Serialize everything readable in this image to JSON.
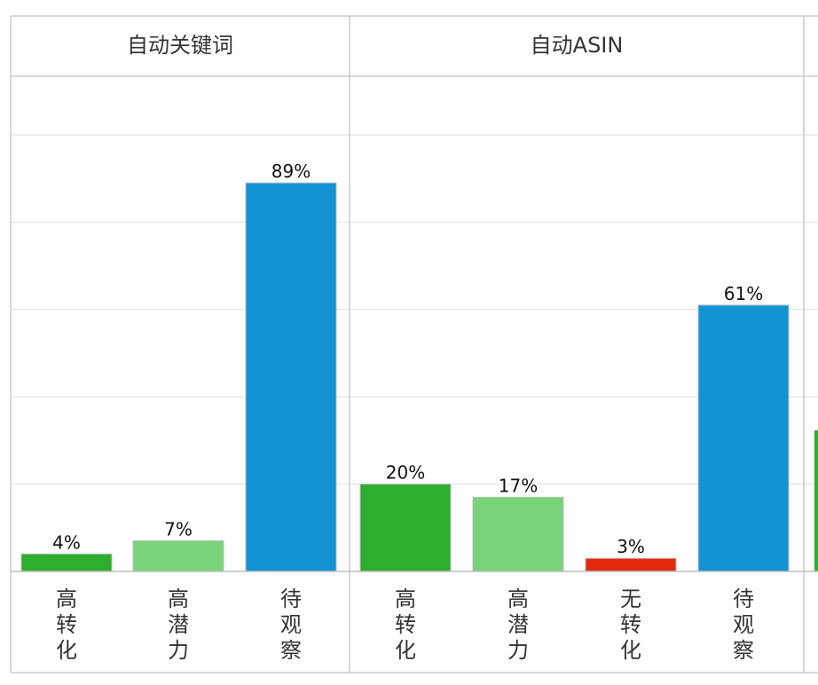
{
  "chart_data": {
    "type": "bar",
    "y_unit": "%",
    "ylim": [
      0,
      100
    ],
    "grid": true,
    "colors": {
      "high_conversion": "#2eae2e",
      "high_potential": "#78d478",
      "no_conversion": "#e0290e",
      "watch": "#1393d4",
      "grid": "#dddddd",
      "border": "#cccccc"
    },
    "panels": [
      {
        "title": "自动关键词",
        "categories": [
          "高转化",
          "高潜力",
          "待观察"
        ],
        "values": [
          4,
          7,
          89
        ],
        "labels": [
          "4%",
          "7%",
          "89%"
        ],
        "color_keys": [
          "high_conversion",
          "high_potential",
          "watch"
        ]
      },
      {
        "title": "自动ASIN",
        "categories": [
          "高转化",
          "高潜力",
          "无转化",
          "待观察"
        ],
        "values": [
          20,
          17,
          3,
          61
        ],
        "labels": [
          "20%",
          "17%",
          "3%",
          "61%"
        ],
        "color_keys": [
          "high_conversion",
          "high_potential",
          "no_conversion",
          "watch"
        ]
      }
    ]
  }
}
